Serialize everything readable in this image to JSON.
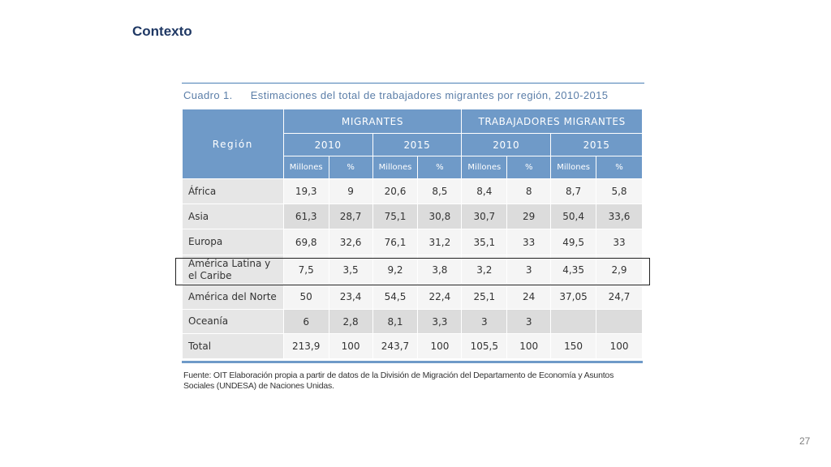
{
  "slide": {
    "title": "Contexto",
    "page_number": "27"
  },
  "table": {
    "caption_number": "Cuadro 1.",
    "caption_text": "Estimaciones del total de trabajadores migrantes por región, 2010-2015",
    "header": {
      "region": "Región",
      "group1": "MIGRANTES",
      "group2": "TRABAJADORES MIGRANTES",
      "years": [
        "2010",
        "2015",
        "2010",
        "2015"
      ],
      "sub": [
        "Millones",
        "%",
        "Millones",
        "%",
        "Millones",
        "%",
        "Millones",
        "%"
      ]
    },
    "rows": [
      {
        "region": "África",
        "values": [
          "19,3",
          "9",
          "20,6",
          "8,5",
          "8,4",
          "8",
          "8,7",
          "5,8"
        ]
      },
      {
        "region": "Asia",
        "values": [
          "61,3",
          "28,7",
          "75,1",
          "30,8",
          "30,7",
          "29",
          "50,4",
          "33,6"
        ]
      },
      {
        "region": "Europa",
        "values": [
          "69,8",
          "32,6",
          "76,1",
          "31,2",
          "35,1",
          "33",
          "49,5",
          "33"
        ]
      },
      {
        "region_line1": "América Latina y",
        "region_line2": "el Caribe",
        "values": [
          "7,5",
          "3,5",
          "9,2",
          "3,8",
          "3,2",
          "3",
          "4,35",
          "2,9"
        ]
      },
      {
        "region": "América del Norte",
        "values": [
          "50",
          "23,4",
          "54,5",
          "22,4",
          "25,1",
          "24",
          "37,05",
          "24,7"
        ]
      },
      {
        "region": "Oceanía",
        "values": [
          "6",
          "2,8",
          "8,1",
          "3,3",
          "3",
          "3",
          "",
          ""
        ]
      },
      {
        "region": "Total",
        "values": [
          "213,9",
          "100",
          "243,7",
          "100",
          "105,5",
          "100",
          "150",
          "100"
        ]
      }
    ],
    "source_note": "Fuente: OIT Elaboración propia a partir de datos de la División de Migración del Departamento de Economía y Asuntos Sociales (UNDESA) de Naciones Unidas."
  }
}
